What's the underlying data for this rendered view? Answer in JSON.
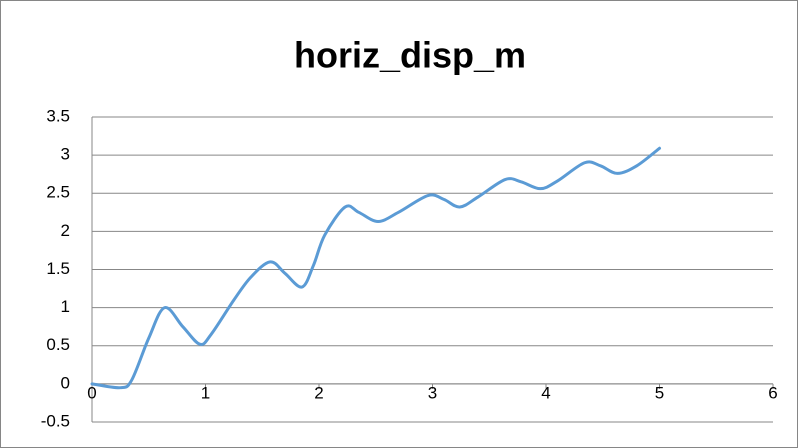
{
  "chart_data": {
    "type": "line",
    "title": "horiz_disp_m",
    "x": [
      0,
      0.25,
      0.35,
      0.5,
      0.64,
      0.8,
      0.95,
      1.05,
      1.25,
      1.4,
      1.57,
      1.7,
      1.85,
      1.95,
      2.05,
      2.23,
      2.35,
      2.52,
      2.7,
      2.96,
      3.1,
      3.24,
      3.4,
      3.64,
      3.78,
      3.95,
      4.1,
      4.34,
      4.48,
      4.63,
      4.8,
      5.0
    ],
    "values": [
      0,
      -0.05,
      0.05,
      0.6,
      1.0,
      0.75,
      0.52,
      0.65,
      1.1,
      1.4,
      1.6,
      1.45,
      1.27,
      1.55,
      1.95,
      2.32,
      2.25,
      2.13,
      2.25,
      2.47,
      2.42,
      2.32,
      2.45,
      2.68,
      2.65,
      2.56,
      2.66,
      2.9,
      2.86,
      2.76,
      2.86,
      3.09
    ],
    "color": "#5b9bd5",
    "xlim": [
      0,
      6
    ],
    "xticks": [
      0,
      1,
      2,
      3,
      4,
      5,
      6
    ],
    "ylim": [
      -0.5,
      3.5
    ],
    "yticks": [
      -0.5,
      0,
      0.5,
      1,
      1.5,
      2,
      2.5,
      3,
      3.5
    ],
    "grid": true
  }
}
